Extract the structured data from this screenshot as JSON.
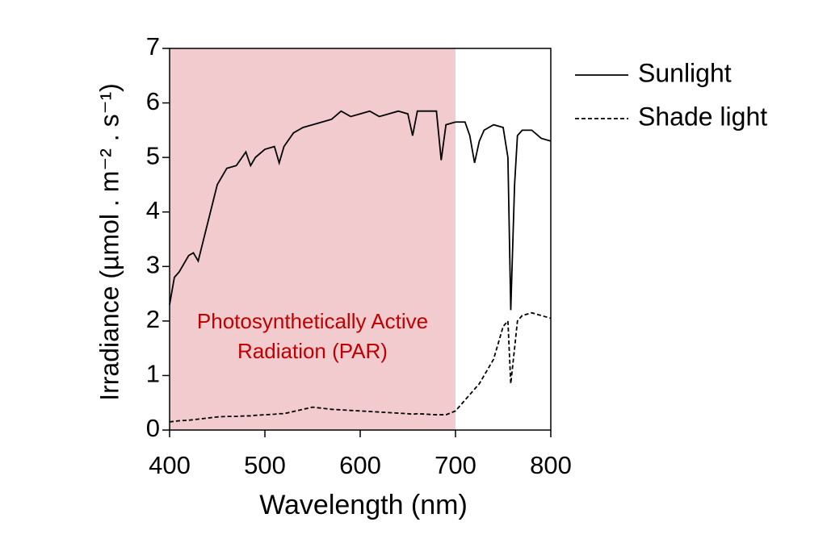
{
  "chart_data": {
    "type": "line",
    "xlabel": "Wavelength (nm)",
    "ylabel": "Irradiance (µmol . m⁻² . s⁻¹)",
    "xlim": [
      400,
      800
    ],
    "ylim": [
      0,
      7
    ],
    "xticks": [
      400,
      500,
      600,
      700,
      800
    ],
    "yticks": [
      0,
      1,
      2,
      3,
      4,
      5,
      6,
      7
    ],
    "shaded_region": {
      "x": [
        400,
        700
      ],
      "color": "#f2cbcf"
    },
    "annotation": {
      "lines": [
        "Photosynthetically Active",
        "Radiation (PAR)"
      ],
      "color": "#c00000"
    },
    "x": [
      400,
      405,
      410,
      420,
      425,
      430,
      440,
      450,
      460,
      470,
      480,
      485,
      490,
      500,
      510,
      515,
      520,
      530,
      540,
      550,
      560,
      570,
      580,
      590,
      600,
      610,
      620,
      630,
      640,
      650,
      655,
      660,
      670,
      680,
      685,
      690,
      700,
      710,
      715,
      720,
      725,
      730,
      740,
      750,
      755,
      758,
      762,
      765,
      770,
      780,
      790,
      800
    ],
    "series": [
      {
        "name": "Sunlight",
        "color": "#000000",
        "style": "solid",
        "values": [
          2.3,
          2.8,
          2.9,
          3.2,
          3.25,
          3.1,
          3.8,
          4.5,
          4.8,
          4.85,
          5.1,
          4.85,
          5.0,
          5.15,
          5.2,
          4.9,
          5.2,
          5.45,
          5.55,
          5.6,
          5.65,
          5.7,
          5.85,
          5.75,
          5.8,
          5.85,
          5.75,
          5.8,
          5.85,
          5.8,
          5.4,
          5.85,
          5.85,
          5.85,
          4.95,
          5.6,
          5.65,
          5.65,
          5.4,
          4.9,
          5.3,
          5.5,
          5.6,
          5.55,
          5.0,
          2.2,
          4.5,
          5.4,
          5.5,
          5.5,
          5.35,
          5.3
        ]
      },
      {
        "name": "Shade light",
        "color": "#000000",
        "style": "dashed",
        "values": [
          0.15,
          0.16,
          0.17,
          0.18,
          0.19,
          0.2,
          0.22,
          0.24,
          0.25,
          0.25,
          0.26,
          0.26,
          0.27,
          0.28,
          0.29,
          0.3,
          0.3,
          0.34,
          0.38,
          0.42,
          0.4,
          0.38,
          0.37,
          0.36,
          0.35,
          0.34,
          0.33,
          0.32,
          0.31,
          0.3,
          0.29,
          0.3,
          0.29,
          0.28,
          0.28,
          0.28,
          0.35,
          0.55,
          0.65,
          0.75,
          0.85,
          1.0,
          1.3,
          1.9,
          2.0,
          0.85,
          1.5,
          2.0,
          2.1,
          2.15,
          2.1,
          2.05
        ]
      }
    ]
  }
}
